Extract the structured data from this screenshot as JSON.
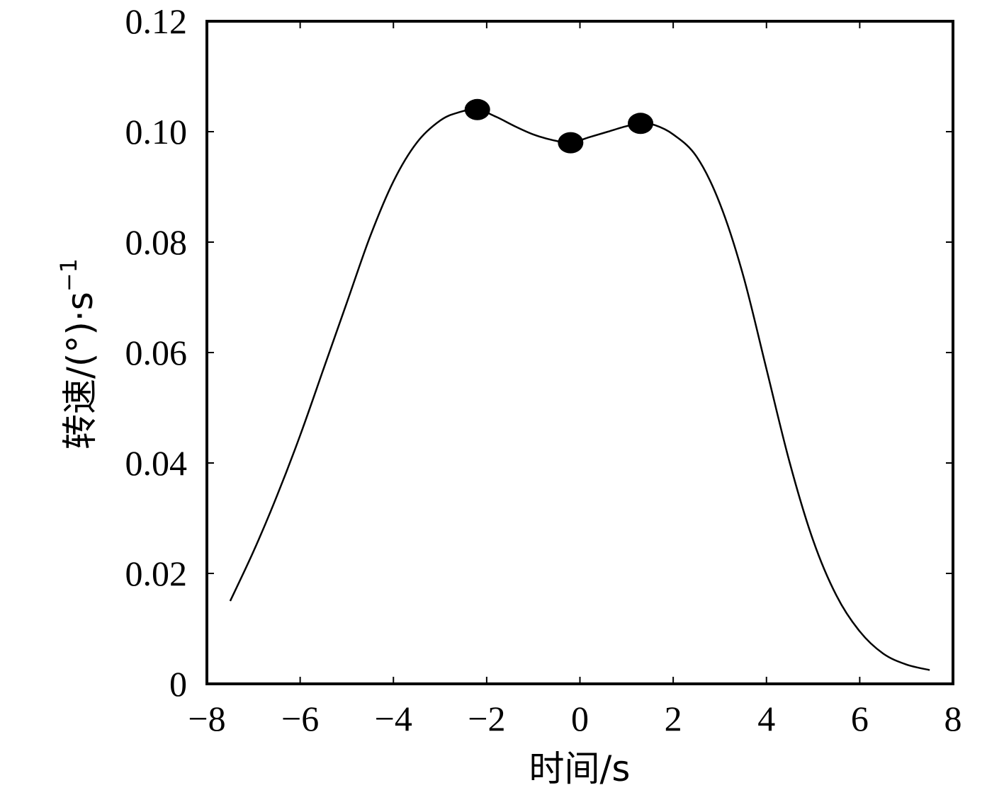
{
  "chart_data": {
    "type": "line",
    "title": "",
    "xlabel": "时间/s",
    "ylabel_main": "转速/(°)·s",
    "ylabel_sup": "−1",
    "xlim": [
      -8,
      8
    ],
    "ylim": [
      0,
      0.12
    ],
    "x_ticks": [
      -8,
      -6,
      -4,
      -2,
      0,
      2,
      4,
      6,
      8
    ],
    "x_tick_labels": [
      "−8",
      "−6",
      "−4",
      "−2",
      "0",
      "2",
      "4",
      "6",
      "8"
    ],
    "y_ticks": [
      0,
      0.02,
      0.04,
      0.06,
      0.08,
      0.1,
      0.12
    ],
    "y_tick_labels": [
      "0",
      "0.02",
      "0.04",
      "0.06",
      "0.08",
      "0.10",
      "0.12"
    ],
    "grid": false,
    "series": [
      {
        "x": [
          -7.5,
          -7.0,
          -6.5,
          -6.0,
          -5.5,
          -5.0,
          -4.5,
          -4.0,
          -3.5,
          -3.0,
          -2.6,
          -2.2,
          -1.8,
          -1.4,
          -1.0,
          -0.6,
          -0.2,
          0.2,
          0.6,
          1.0,
          1.3,
          1.6,
          2.0,
          2.5,
          3.0,
          3.5,
          4.0,
          4.5,
          5.0,
          5.5,
          6.0,
          6.5,
          7.0,
          7.5
        ],
        "y": [
          0.015,
          0.024,
          0.034,
          0.045,
          0.057,
          0.069,
          0.081,
          0.091,
          0.098,
          0.102,
          0.1035,
          0.104,
          0.1027,
          0.101,
          0.0995,
          0.0985,
          0.098,
          0.099,
          0.1,
          0.101,
          0.1015,
          0.1012,
          0.0995,
          0.0955,
          0.087,
          0.074,
          0.057,
          0.04,
          0.026,
          0.016,
          0.0095,
          0.0055,
          0.0035,
          0.0025
        ],
        "color": "#000000"
      }
    ],
    "markers": [
      {
        "x": -2.2,
        "y": 0.104
      },
      {
        "x": -0.2,
        "y": 0.098
      },
      {
        "x": 1.3,
        "y": 0.1015
      }
    ]
  }
}
